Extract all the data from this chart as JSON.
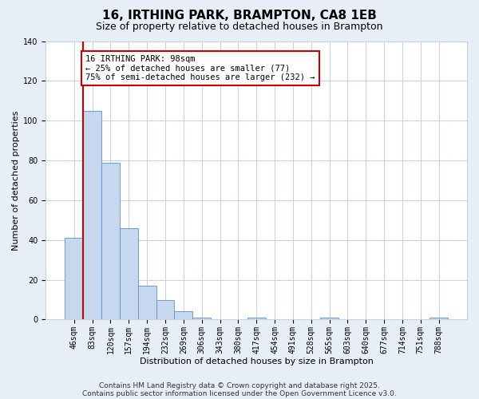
{
  "title": "16, IRTHING PARK, BRAMPTON, CA8 1EB",
  "subtitle": "Size of property relative to detached houses in Brampton",
  "xlabel": "Distribution of detached houses by size in Brampton",
  "ylabel": "Number of detached properties",
  "bin_labels": [
    "46sqm",
    "83sqm",
    "120sqm",
    "157sqm",
    "194sqm",
    "232sqm",
    "269sqm",
    "306sqm",
    "343sqm",
    "380sqm",
    "417sqm",
    "454sqm",
    "491sqm",
    "528sqm",
    "565sqm",
    "603sqm",
    "640sqm",
    "677sqm",
    "714sqm",
    "751sqm",
    "788sqm"
  ],
  "bar_values": [
    41,
    105,
    79,
    46,
    17,
    10,
    4,
    1,
    0,
    0,
    1,
    0,
    0,
    0,
    1,
    0,
    0,
    0,
    0,
    0,
    1
  ],
  "bar_color": "#c5d8f0",
  "bar_edge_color": "#5b8fc9",
  "vline_color": "#cc0000",
  "ylim": [
    0,
    140
  ],
  "yticks": [
    0,
    20,
    40,
    60,
    80,
    100,
    120,
    140
  ],
  "annotation_line1": "16 IRTHING PARK: 98sqm",
  "annotation_line2": "← 25% of detached houses are smaller (77)",
  "annotation_line3": "75% of semi-detached houses are larger (232) →",
  "footer1": "Contains HM Land Registry data © Crown copyright and database right 2025.",
  "footer2": "Contains public sector information licensed under the Open Government Licence v3.0.",
  "fig_background_color": "#e8eef8",
  "plot_background_color": "#ffffff",
  "grid_color": "#c8d0dc",
  "title_fontsize": 11,
  "subtitle_fontsize": 9,
  "label_fontsize": 8,
  "tick_fontsize": 7,
  "footer_fontsize": 6.5,
  "ann_fontsize": 7.5
}
